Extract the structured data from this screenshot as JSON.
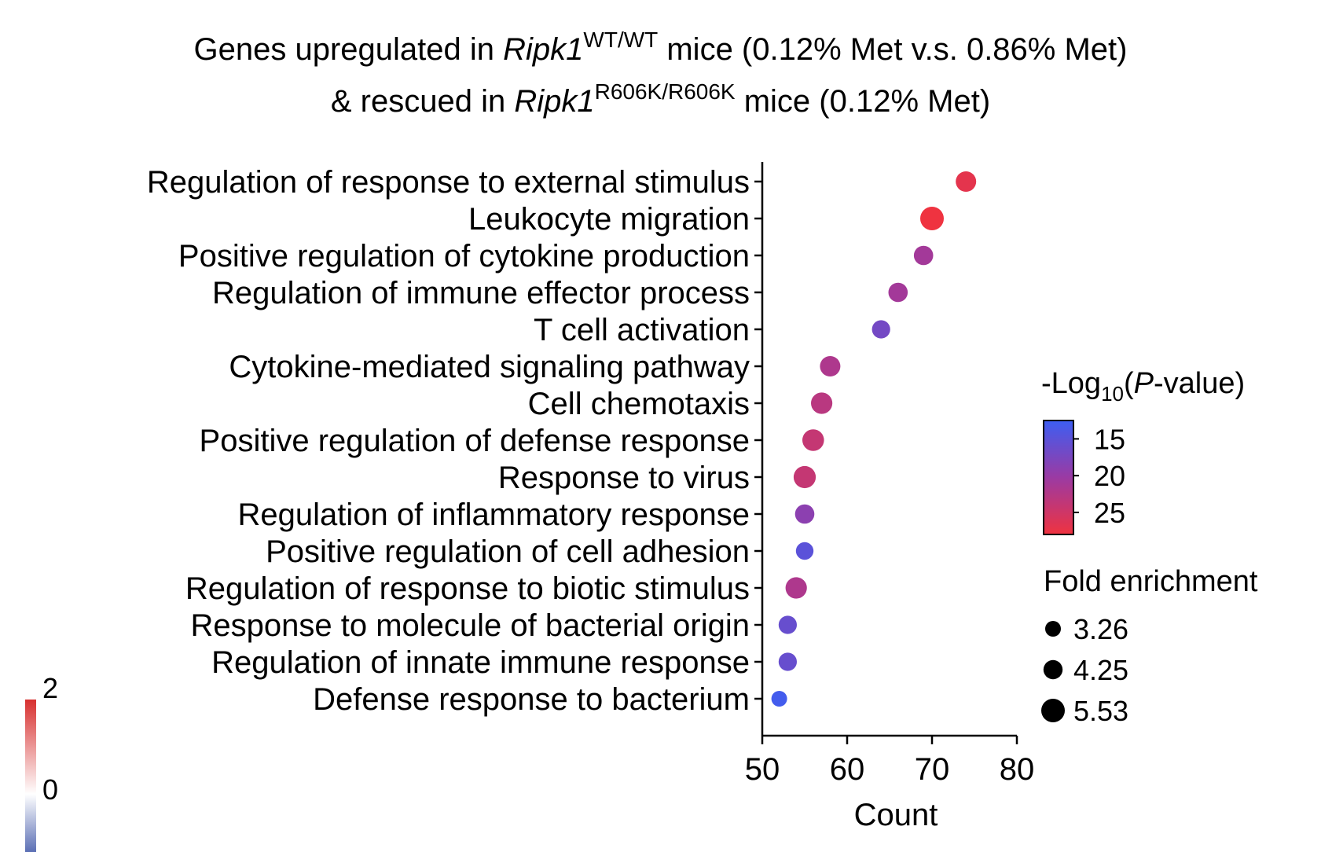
{
  "title": {
    "line1_pre": "Genes upregulated in ",
    "line1_gene": "Ripk1",
    "line1_sup": "WT/WT",
    "line1_post": " mice (0.12% Met v.s. 0.86% Met)",
    "line2_pre": "& rescued in ",
    "line2_gene": "Ripk1",
    "line2_sup": "R606K/R606K",
    "line2_post": " mice (0.12% Met)"
  },
  "chart_data": {
    "type": "scatter",
    "xlabel": "Count",
    "xlim": [
      50,
      80
    ],
    "xticks": [
      "50",
      "60",
      "70",
      "80"
    ],
    "categories": [
      "Regulation of response to external stimulus",
      "Leukocyte migration",
      "Positive regulation of cytokine production",
      "Regulation of immune effector process",
      "T cell activation",
      "Cytokine-mediated signaling pathway",
      "Cell chemotaxis",
      "Positive regulation of defense response",
      "Response to virus",
      "Regulation of inflammatory response",
      "Positive regulation of cell adhesion",
      "Regulation of response to biotic stimulus",
      "Response to molecule of bacterial origin",
      "Regulation of innate immune response",
      "Defense response to bacterium"
    ],
    "count": [
      74,
      70,
      69,
      66,
      64,
      58,
      57,
      56,
      55,
      55,
      55,
      54,
      53,
      53,
      52
    ],
    "neg_log10_p": [
      27,
      28,
      21,
      21,
      17,
      22,
      23,
      24,
      24,
      19,
      15,
      22,
      16,
      16,
      13
    ],
    "fold_enrichment": [
      4.6,
      5.53,
      4.3,
      4.3,
      4.0,
      4.6,
      4.9,
      5.0,
      5.1,
      4.3,
      3.8,
      4.9,
      4.0,
      4.0,
      3.26
    ],
    "color_legend": {
      "title_pre": "-Log",
      "title_sub": "10",
      "title_open": "(",
      "title_p": "P",
      "title_post": "-value)",
      "ticks": [
        "15",
        "20",
        "25"
      ],
      "tick_values": [
        15,
        20,
        25
      ],
      "range": [
        12.5,
        28
      ],
      "color_low": "#3d5ef2",
      "color_mid": "#9b3aa3",
      "color_high": "#ef3340"
    },
    "size_legend": {
      "title": "Fold enrichment",
      "labels": [
        "3.26",
        "4.25",
        "5.53"
      ],
      "values": [
        3.26,
        4.25,
        5.53
      ]
    },
    "side_colorbar": {
      "labels": [
        "2",
        "0"
      ],
      "values": [
        2,
        0
      ],
      "color_high": "#d7302f",
      "color_mid": "#ffffff",
      "color_low": "#5b6fb5"
    }
  }
}
